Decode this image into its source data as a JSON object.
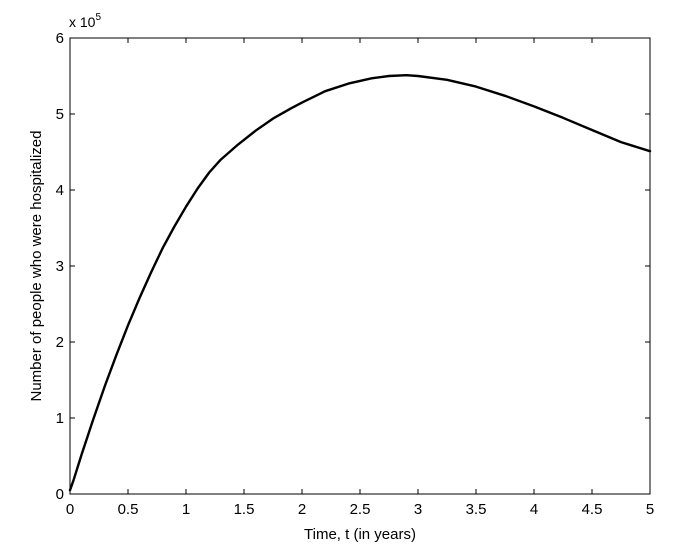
{
  "chart_data": {
    "type": "line",
    "title": "",
    "xlabel": "Time, t (in years)",
    "ylabel": "Number of people who were hospitalized",
    "y_multiplier_label": "x 10",
    "y_multiplier_exponent": "5",
    "xlim": [
      0,
      5
    ],
    "ylim": [
      0,
      6
    ],
    "xticks": [
      0,
      0.5,
      1,
      1.5,
      2,
      2.5,
      3,
      3.5,
      4,
      4.5,
      5
    ],
    "xtick_labels": [
      "0",
      "0.5",
      "1",
      "1.5",
      "2",
      "2.5",
      "3",
      "3.5",
      "4",
      "4.5",
      "5"
    ],
    "yticks": [
      0,
      1,
      2,
      3,
      4,
      5,
      6
    ],
    "ytick_labels": [
      "0",
      "1",
      "2",
      "3",
      "4",
      "5",
      "6"
    ],
    "y_scale_factor": 100000,
    "grid": false,
    "line_color": "#000000",
    "series": [
      {
        "x": [
          0,
          0.03,
          0.1,
          0.2,
          0.3,
          0.4,
          0.5,
          0.6,
          0.7,
          0.8,
          0.9,
          1.0,
          1.1,
          1.2,
          1.3,
          1.45,
          1.6,
          1.75,
          1.9,
          2.0,
          2.2,
          2.4,
          2.6,
          2.75,
          2.9,
          3.0,
          3.25,
          3.5,
          3.75,
          4.0,
          4.25,
          4.5,
          4.75,
          5.0
        ],
        "y": [
          0.05,
          0.18,
          0.52,
          0.98,
          1.42,
          1.83,
          2.22,
          2.58,
          2.92,
          3.24,
          3.52,
          3.78,
          4.02,
          4.23,
          4.4,
          4.6,
          4.78,
          4.94,
          5.07,
          5.15,
          5.3,
          5.4,
          5.47,
          5.5,
          5.51,
          5.5,
          5.45,
          5.36,
          5.24,
          5.1,
          4.95,
          4.79,
          4.63,
          4.51
        ]
      }
    ]
  }
}
